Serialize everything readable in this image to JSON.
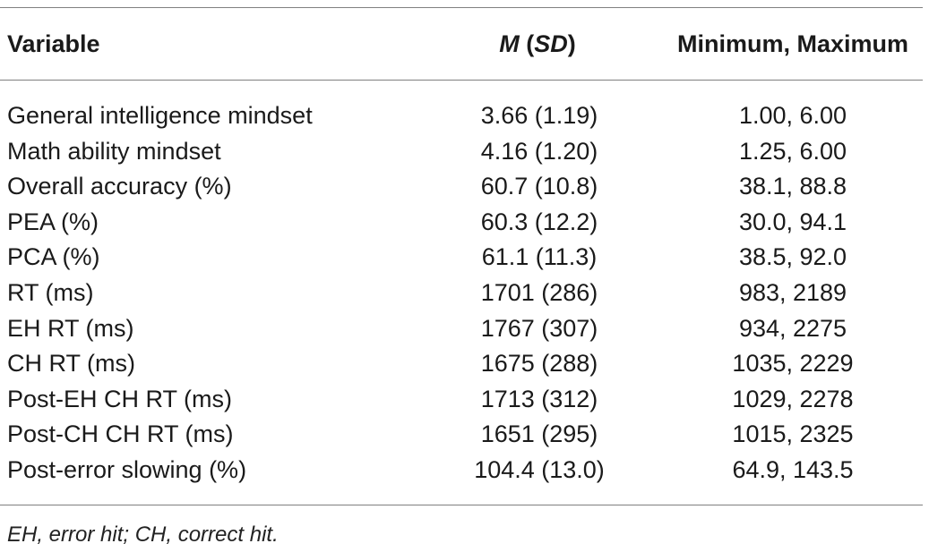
{
  "table": {
    "headers": {
      "variable": "Variable",
      "m": "M",
      "sd": "SD",
      "minmax": "Minimum, Maximum"
    },
    "rows": [
      {
        "variable": "General intelligence mindset",
        "msd": "3.66 (1.19)",
        "minmax": "1.00, 6.00"
      },
      {
        "variable": "Math ability mindset",
        "msd": "4.16 (1.20)",
        "minmax": "1.25, 6.00"
      },
      {
        "variable": "Overall accuracy (%)",
        "msd": "60.7 (10.8)",
        "minmax": "38.1, 88.8"
      },
      {
        "variable": "PEA (%)",
        "msd": "60.3 (12.2)",
        "minmax": "30.0, 94.1"
      },
      {
        "variable": "PCA (%)",
        "msd": "61.1 (11.3)",
        "minmax": "38.5, 92.0"
      },
      {
        "variable": "RT (ms)",
        "msd": "1701 (286)",
        "minmax": "983, 2189"
      },
      {
        "variable": "EH RT (ms)",
        "msd": "1767 (307)",
        "minmax": "934, 2275"
      },
      {
        "variable": "CH RT (ms)",
        "msd": "1675 (288)",
        "minmax": "1035, 2229"
      },
      {
        "variable": "Post-EH CH RT (ms)",
        "msd": "1713 (312)",
        "minmax": "1029, 2278"
      },
      {
        "variable": "Post-CH CH RT (ms)",
        "msd": "1651 (295)",
        "minmax": "1015, 2325"
      },
      {
        "variable": "Post-error slowing (%)",
        "msd": "104.4 (13.0)",
        "minmax": "64.9, 143.5"
      }
    ],
    "footnote": "EH, error hit; CH, correct hit."
  }
}
